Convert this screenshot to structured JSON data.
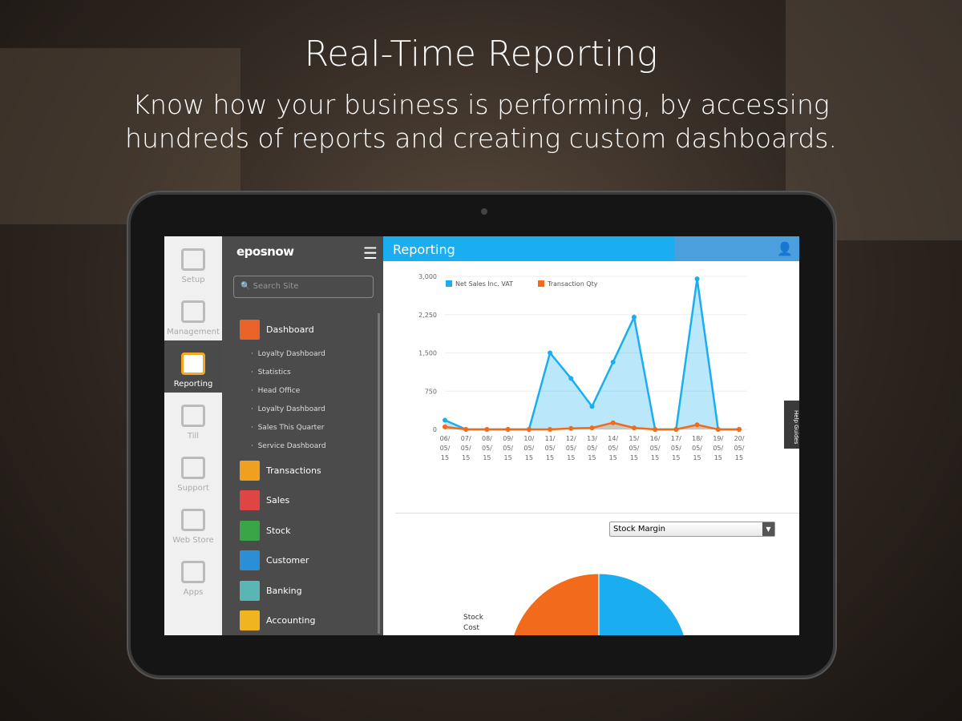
{
  "headline": {
    "title": "Real-Time Reporting",
    "subtitle_line1": "Know how your business is performing, by accessing",
    "subtitle_line2": "hundreds of reports and creating custom dashboards."
  },
  "iconbar": [
    {
      "label": "Setup",
      "icon": "gears-icon"
    },
    {
      "label": "Management",
      "icon": "clipboard-icon"
    },
    {
      "label": "Reporting",
      "icon": "easel-chart-icon",
      "selected": true
    },
    {
      "label": "Till",
      "icon": "till-icon"
    },
    {
      "label": "Support",
      "icon": "lifebuoy-icon"
    },
    {
      "label": "Web Store",
      "icon": "basket-icon"
    },
    {
      "label": "Apps",
      "icon": "apps-icon"
    }
  ],
  "nav": {
    "logo": "eposnow",
    "search_placeholder": "Search Site",
    "dashboard": {
      "label": "Dashboard",
      "color": "#e8622a",
      "items": [
        "Loyalty Dashboard",
        "Statistics",
        "Head Office",
        "Loyalty Dashboard",
        "Sales This Quarter",
        "Service Dashboard"
      ]
    },
    "sections": [
      {
        "label": "Transactions",
        "color": "#f0a020"
      },
      {
        "label": "Sales",
        "color": "#e04545"
      },
      {
        "label": "Stock",
        "color": "#3aa546"
      },
      {
        "label": "Customer",
        "color": "#2b8fd6"
      },
      {
        "label": "Banking",
        "color": "#5ab5b5"
      },
      {
        "label": "Accounting",
        "color": "#f0b420"
      }
    ]
  },
  "header": {
    "title": "Reporting"
  },
  "help_tab": "Help Guides",
  "dropdown": {
    "selected": "Stock Margin"
  },
  "pie_label": "Stock Cost",
  "chart_data": {
    "type": "area",
    "ylim": [
      0,
      3000
    ],
    "yticks": [
      "3,000",
      "2,250",
      "1,500",
      "750",
      "0"
    ],
    "ytick_values": [
      3000,
      2250,
      1500,
      750,
      0
    ],
    "legend_position": "top-left",
    "categories": [
      "06/05/15",
      "07/05/15",
      "08/05/15",
      "09/05/15",
      "10/05/15",
      "11/05/15",
      "12/05/15",
      "13/05/15",
      "14/05/15",
      "15/05/15",
      "16/05/15",
      "17/05/15",
      "18/05/15",
      "19/05/15",
      "20/05/15"
    ],
    "series": [
      {
        "name": "Net Sales Inc. VAT",
        "color": "#1aaef0",
        "values": [
          180,
          0,
          0,
          0,
          0,
          1500,
          1000,
          450,
          1320,
          2200,
          0,
          0,
          2950,
          0,
          0
        ]
      },
      {
        "name": "Transaction Qty",
        "color": "#f26a1b",
        "values": [
          50,
          0,
          0,
          0,
          0,
          0,
          20,
          30,
          130,
          30,
          0,
          0,
          90,
          0,
          0
        ]
      }
    ]
  },
  "pie_data": {
    "slices": [
      {
        "color": "#f26a1b",
        "value": 50
      },
      {
        "color": "#1aaef0",
        "value": 50
      }
    ]
  }
}
